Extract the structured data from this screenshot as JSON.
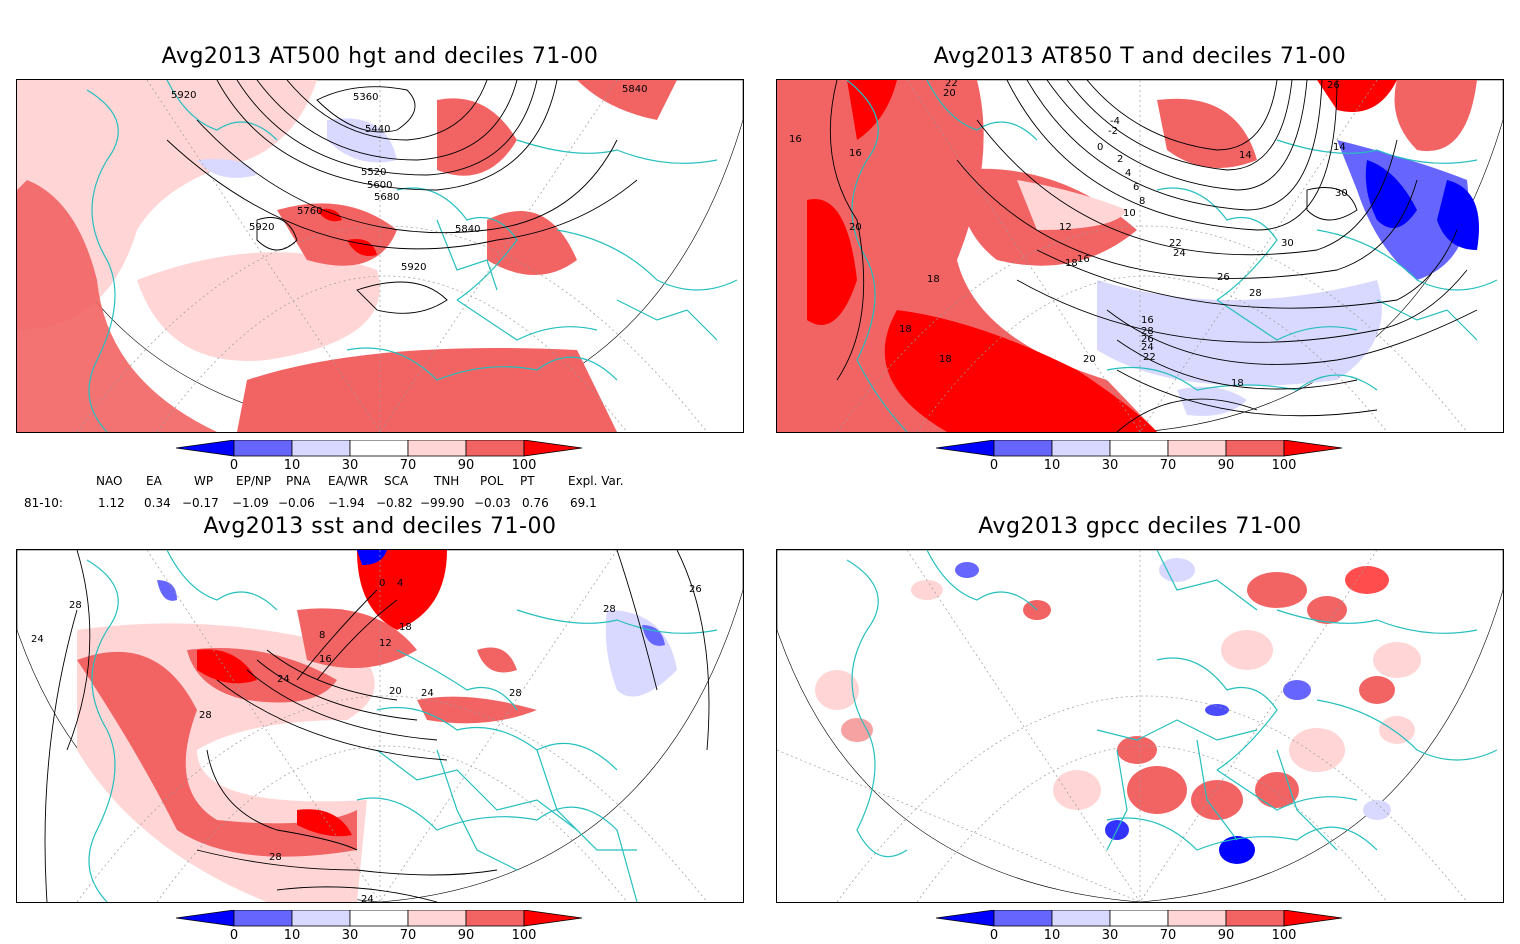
{
  "panels": [
    {
      "id": "hgt500",
      "title": "Avg2013 AT500 hgt and deciles 71-00",
      "contour_labels": [
        "5920",
        "5360",
        "5440",
        "5840",
        "5520",
        "5600",
        "5680",
        "5760",
        "5920",
        "5840",
        "5920"
      ]
    },
    {
      "id": "t850",
      "title": "Avg2013 AT850 T and deciles 71-00",
      "contour_labels": [
        "22",
        "20",
        "26",
        "16",
        "16",
        "-4",
        "-2",
        "0",
        "2",
        "4",
        "6",
        "8",
        "10",
        "12",
        "14",
        "14",
        "30",
        "30",
        "28",
        "26",
        "24",
        "22",
        "20",
        "18",
        "18",
        "18",
        "18",
        "16",
        "28",
        "26",
        "24",
        "22",
        "20",
        "18",
        "16",
        "16",
        "18"
      ]
    },
    {
      "id": "sst",
      "title": "Avg2013 sst and deciles 71-00",
      "contour_labels": [
        "28",
        "24",
        "0",
        "4",
        "8",
        "12",
        "16",
        "20",
        "24",
        "28",
        "28",
        "26",
        "24",
        "28",
        "24",
        "18",
        "28"
      ]
    },
    {
      "id": "gpcc",
      "title": "Avg2013 gpcc deciles 71-00",
      "contour_labels": []
    }
  ],
  "colorbar": {
    "labels": [
      "0",
      "10",
      "30",
      "70",
      "90",
      "100"
    ],
    "colors": {
      "deep_blue": "#0000ff",
      "mid_blue": "#6666ff",
      "light_blue": "#d9d9ff",
      "white": "#ffffff",
      "light_red": "#ffd5d5",
      "mid_red": "#f26464",
      "deep_red": "#ff0000"
    }
  },
  "indices": {
    "headers": [
      "NAO",
      "EA",
      "WP",
      "EP/NP",
      "PNA",
      "EA/WR",
      "SCA",
      "TNH",
      "POL",
      "PT",
      "Expl. Var."
    ],
    "row_label": "81-10:",
    "values": [
      "1.12",
      "0.34",
      "−0.17",
      "−1.09",
      "−0.06",
      "−1.94",
      "−0.82",
      "−99.90",
      "−0.03",
      "0.76",
      "69.1"
    ]
  },
  "colors": {
    "coast": "#26bfbf",
    "contour": "#000000",
    "graticule": "#999999"
  }
}
